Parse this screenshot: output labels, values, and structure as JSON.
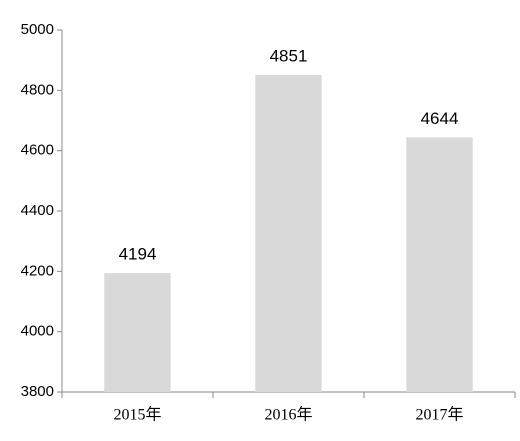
{
  "chart_data": {
    "type": "bar",
    "categories": [
      "2015年",
      "2016年",
      "2017年"
    ],
    "values": [
      4194,
      4851,
      4644
    ],
    "color": "#d9d9d9",
    "ylim": [
      3800,
      5000
    ],
    "yticks": [
      3800,
      4000,
      4200,
      4400,
      4600,
      4800,
      5000
    ],
    "grid": false
  }
}
